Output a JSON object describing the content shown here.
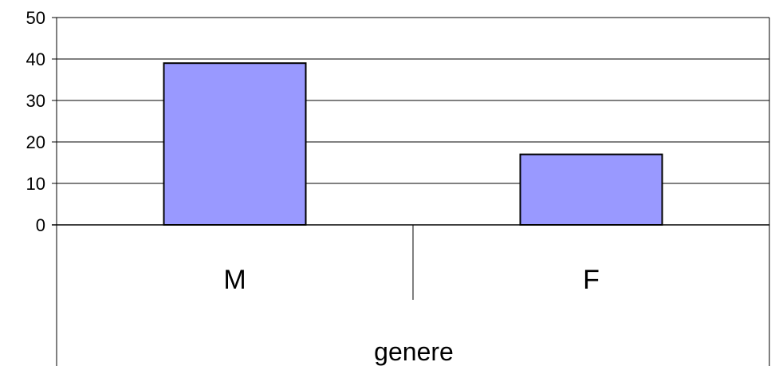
{
  "chart_data": {
    "type": "bar",
    "categories": [
      "M",
      "F"
    ],
    "values": [
      39,
      17
    ],
    "ylim": [
      0,
      50
    ],
    "yticks": [
      0,
      10,
      20,
      30,
      40,
      50
    ],
    "xlabel": "genere",
    "ylabel": "",
    "title": "",
    "grid": true,
    "legend": "none",
    "bar_color": "#9999ff",
    "bar_border_color": "#000000"
  }
}
